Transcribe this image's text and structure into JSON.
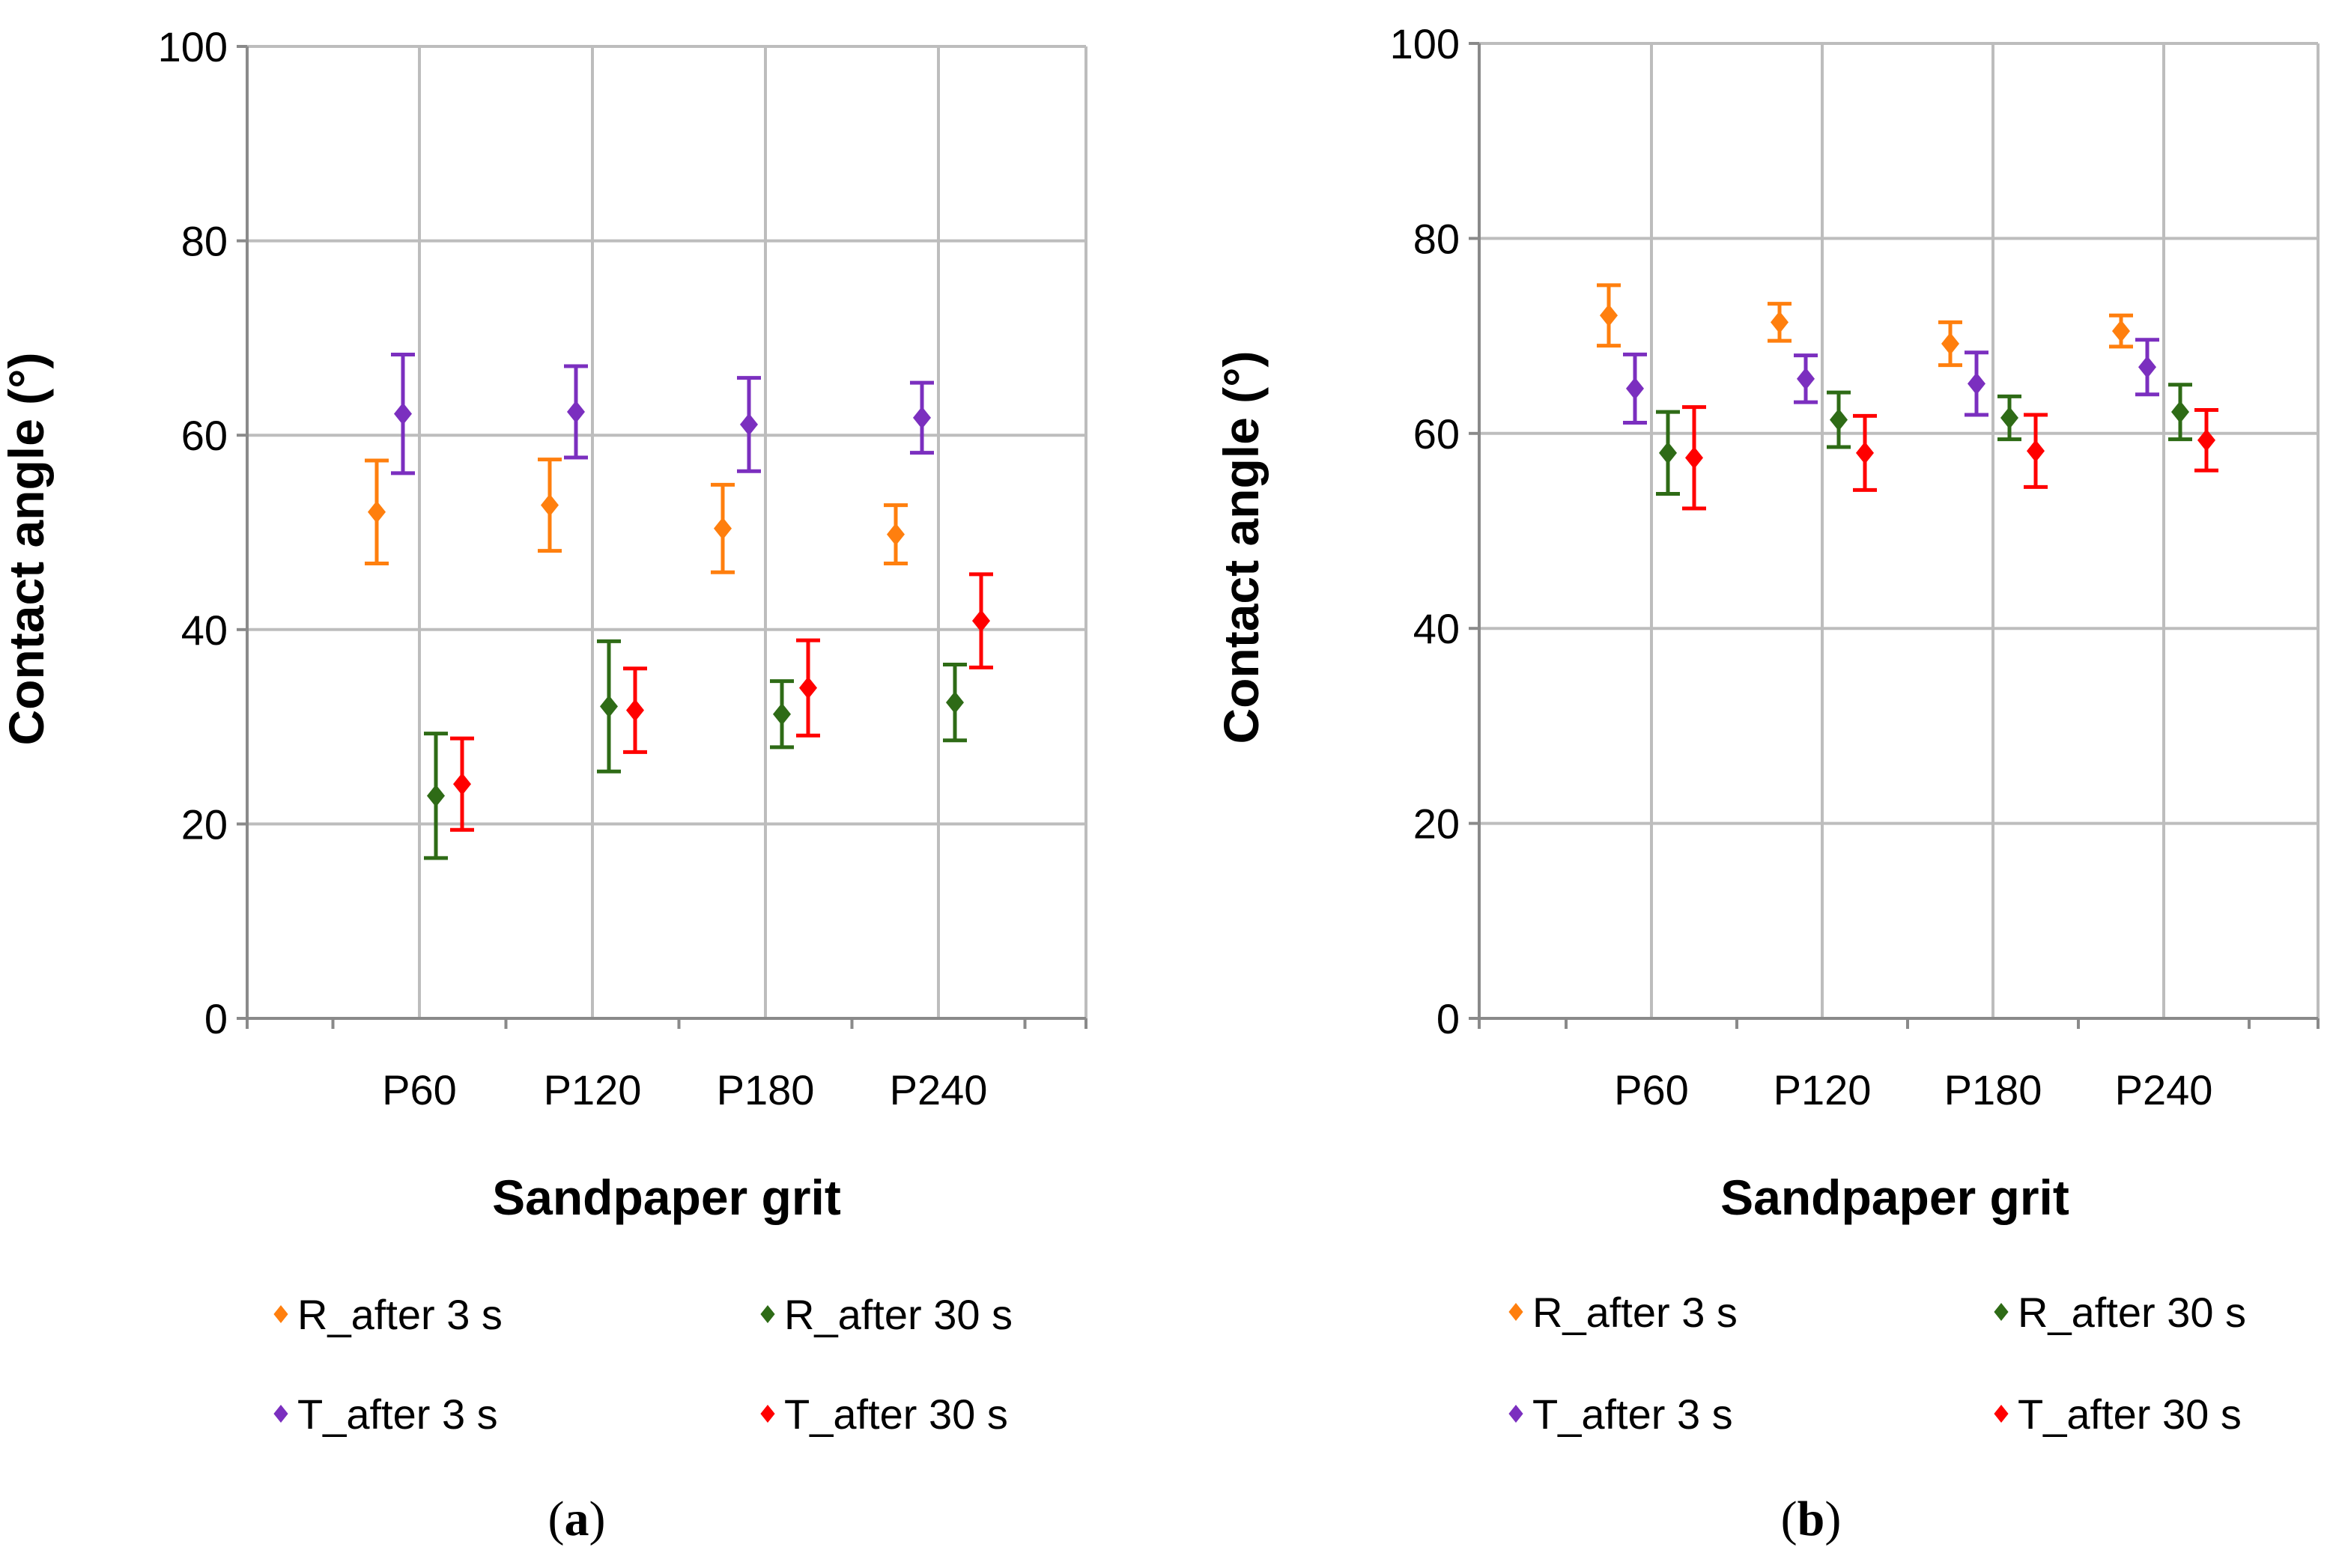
{
  "chart_data": [
    {
      "type": "scatter",
      "panel_label": "a",
      "xlabel": "Sandpaper grit",
      "ylabel": "Contact angle (°)",
      "ylim": [
        0,
        100
      ],
      "ytick_step": 20,
      "grid": true,
      "legend_position": "bottom",
      "categories": [
        "P60",
        "P120",
        "P180",
        "P240"
      ],
      "series": [
        {
          "name": "R_after 3 s",
          "color": "#ff7f0e",
          "marker": "diamond",
          "values": [
            52.1,
            52.8,
            50.4,
            49.8
          ],
          "errors": [
            5.3,
            4.7,
            4.5,
            3.0
          ]
        },
        {
          "name": "T_after 3 s",
          "color": "#7b2fbf",
          "marker": "diamond",
          "values": [
            62.2,
            62.4,
            61.1,
            61.8
          ],
          "errors": [
            6.1,
            4.7,
            4.8,
            3.6
          ]
        },
        {
          "name": "R_after 30 s",
          "color": "#2e6b16",
          "marker": "diamond",
          "values": [
            22.9,
            32.1,
            31.3,
            32.5
          ],
          "errors": [
            6.4,
            6.7,
            3.4,
            3.9
          ]
        },
        {
          "name": "T_after 30 s",
          "color": "#ff0000",
          "marker": "diamond",
          "values": [
            24.1,
            31.7,
            34.0,
            40.9
          ],
          "errors": [
            4.7,
            4.3,
            4.9,
            4.8
          ]
        }
      ]
    },
    {
      "type": "scatter",
      "panel_label": "b",
      "xlabel": "Sandpaper grit",
      "ylabel": "Contact angle (°)",
      "ylim": [
        0,
        100
      ],
      "ytick_step": 20,
      "grid": true,
      "legend_position": "bottom",
      "categories": [
        "P60",
        "P120",
        "P180",
        "P240"
      ],
      "series": [
        {
          "name": "R_after 3 s",
          "color": "#ff7f0e",
          "marker": "diamond",
          "values": [
            72.1,
            71.4,
            69.2,
            70.5
          ],
          "errors": [
            3.1,
            1.9,
            2.2,
            1.6
          ]
        },
        {
          "name": "T_after 3 s",
          "color": "#7b2fbf",
          "marker": "diamond",
          "values": [
            64.6,
            65.6,
            65.1,
            66.8
          ],
          "errors": [
            3.5,
            2.4,
            3.2,
            2.8
          ]
        },
        {
          "name": "R_after 30 s",
          "color": "#2e6b16",
          "marker": "diamond",
          "values": [
            58.0,
            61.4,
            61.6,
            62.2
          ],
          "errors": [
            4.2,
            2.8,
            2.2,
            2.8
          ]
        },
        {
          "name": "T_after 30 s",
          "color": "#ff0000",
          "marker": "diamond",
          "values": [
            57.5,
            58.0,
            58.2,
            59.3
          ],
          "errors": [
            5.2,
            3.8,
            3.7,
            3.1
          ]
        }
      ]
    }
  ]
}
